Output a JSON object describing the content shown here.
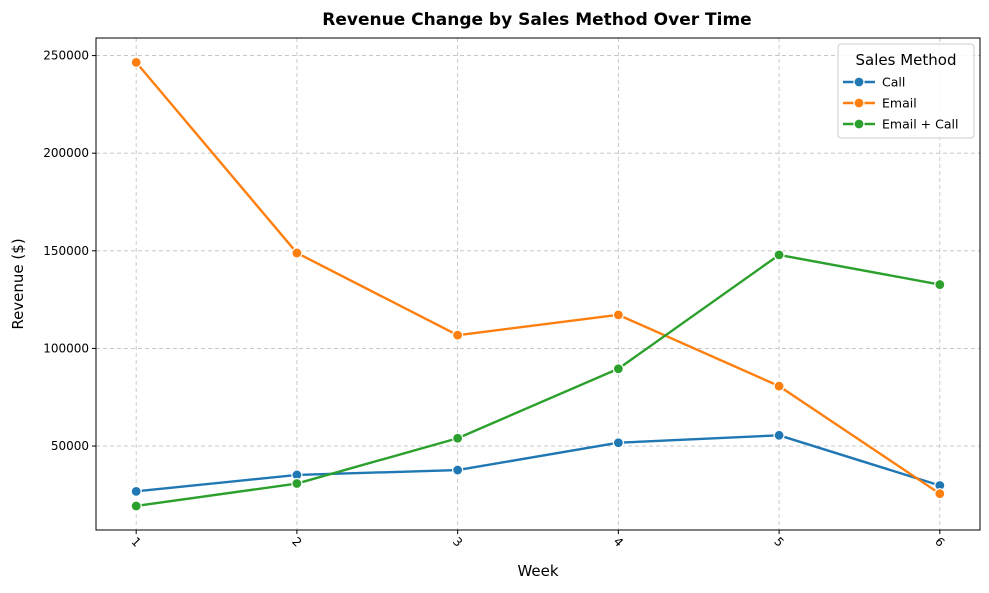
{
  "chart_data": {
    "type": "line",
    "title": "Revenue Change by Sales Method Over Time",
    "xlabel": "Week",
    "ylabel": "Revenue ($)",
    "x": [
      1,
      2,
      3,
      4,
      5,
      6
    ],
    "x_tick_labels": [
      "1",
      "2",
      "3",
      "4",
      "5",
      "6"
    ],
    "x_tick_rotation": 45,
    "ylim": [
      7000,
      259000
    ],
    "y_ticks": [
      50000,
      100000,
      150000,
      200000,
      250000
    ],
    "y_tick_labels": [
      "50000",
      "100000",
      "150000",
      "200000",
      "250000"
    ],
    "grid": true,
    "legend": {
      "title": "Sales Method",
      "placement": "top-right"
    },
    "series": [
      {
        "name": "Call",
        "color": "#1f77b4",
        "values": [
          26800,
          35200,
          37700,
          51700,
          55500,
          29800
        ]
      },
      {
        "name": "Email",
        "color": "#ff7f0e",
        "values": [
          246500,
          148900,
          106800,
          117200,
          80700,
          25600
        ]
      },
      {
        "name": "Email + Call",
        "color": "#2ca02c",
        "values": [
          19300,
          30800,
          54000,
          89600,
          147900,
          132700
        ]
      }
    ]
  }
}
